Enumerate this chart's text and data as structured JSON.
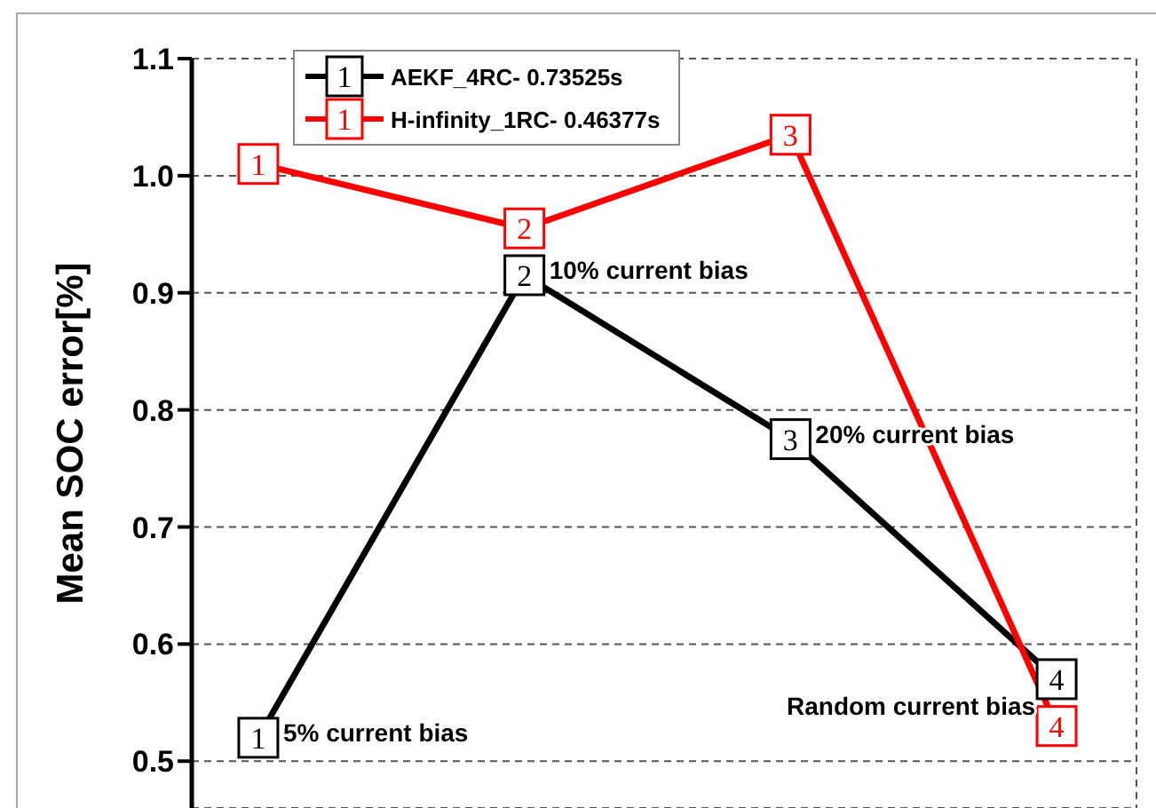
{
  "chart_data": {
    "type": "line",
    "ylabel": "Mean SOC error[%]",
    "categories": [
      null,
      null,
      null,
      null
    ],
    "series": [
      {
        "name": "AEKF_4RC- 0.73525s",
        "color": "#000000",
        "values": [
          0.52,
          0.915,
          0.775,
          0.57
        ]
      },
      {
        "name": "H-infinity_1RC- 0.46377s",
        "color": "#ff0000",
        "values": [
          1.01,
          0.955,
          1.035,
          0.53
        ]
      }
    ],
    "annotations": [
      "5% current bias",
      "10% current bias",
      "20% current bias",
      "Random current bias",
      "1",
      "2",
      "3",
      "4",
      "1",
      "2",
      "3",
      "4",
      "1",
      "1"
    ],
    "ylim": [
      0.46,
      1.1
    ],
    "yticks": [
      0.5,
      0.6,
      0.7,
      0.8,
      0.9,
      {
        "value": 1,
        "label": "1.0"
      },
      1.1
    ],
    "grid": true,
    "legend": "top left",
    "marker": "square",
    "line_style": "solid"
  }
}
